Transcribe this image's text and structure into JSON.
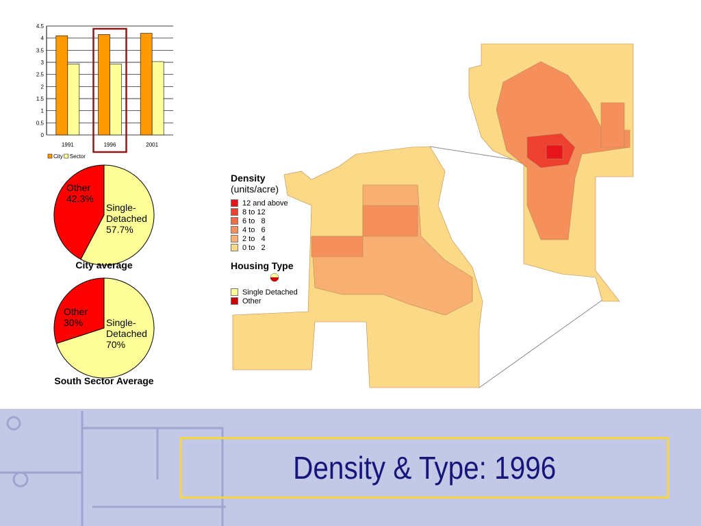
{
  "slide": {
    "title": "Density & Type: 1996"
  },
  "chart_data": [
    {
      "type": "bar",
      "categories": [
        "1991",
        "1996",
        "2001"
      ],
      "series": [
        {
          "name": "City",
          "color": "#ff9900",
          "values": [
            4.1,
            4.15,
            4.2
          ]
        },
        {
          "name": "Sector",
          "color": "#ffff99",
          "values": [
            2.93,
            2.93,
            3.03
          ]
        }
      ],
      "ylim": [
        0,
        4.5
      ],
      "yticks": [
        0,
        0.5,
        1,
        1.5,
        2,
        2.5,
        3,
        3.5,
        4,
        4.5
      ],
      "grid": true,
      "legend": "bottom-left",
      "highlight": 1
    },
    {
      "type": "pie",
      "title": "City average",
      "categories": [
        "Other",
        "Single-Detached"
      ],
      "values": [
        42.3,
        57.7
      ],
      "value_labels": [
        "42.3%",
        "57.7%"
      ],
      "colors": [
        "#ff0000",
        "#ffff99"
      ]
    },
    {
      "type": "pie",
      "title": "South Sector Average",
      "categories": [
        "Other",
        "Single-Detached"
      ],
      "values": [
        30,
        70
      ],
      "value_labels": [
        "30%",
        "70%"
      ],
      "colors": [
        "#ff0000",
        "#ffff99"
      ]
    }
  ],
  "map_legend": {
    "title": "Density",
    "subtitle": "(units/acre)",
    "density_items": [
      {
        "label": "12 and above",
        "color": "#e8141b"
      },
      {
        "label": "8 to 12",
        "color": "#ee4030"
      },
      {
        "label": "6 to   8",
        "color": "#f26a46"
      },
      {
        "label": "4 to   6",
        "color": "#f58f5b"
      },
      {
        "label": "2 to   4",
        "color": "#f8b072"
      },
      {
        "label": "0 to   2",
        "color": "#fbd987"
      }
    ],
    "type_title": "Housing Type",
    "type_items": [
      {
        "label": "Single Detached",
        "color": "#ffff99"
      },
      {
        "label": "Other",
        "color": "#cc0000"
      }
    ]
  }
}
